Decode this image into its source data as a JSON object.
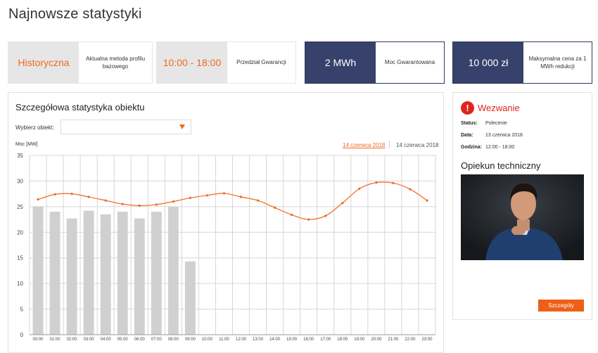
{
  "page_title": "Najnowsze statystyki",
  "cards": [
    {
      "value": "Historyczna",
      "label": "Aktualna metoda profilu bazowego"
    },
    {
      "value": "10:00 - 18:00",
      "label": "Przedział Gwarancji"
    },
    {
      "value": "2 MWh",
      "label": "Moc Gwarantowana"
    },
    {
      "value": "10 000 zł",
      "label": "Maksymalna cena za 1 MWh redukcji"
    }
  ],
  "stats": {
    "title": "Szczegółowa statystyka obiektu",
    "select_label": "Wybierz obiekt:",
    "select_value": "",
    "date_active": "14 czerwca 2018",
    "date_other": "14 czerwca 2018"
  },
  "alert": {
    "icon": "exclamation-icon",
    "title": "Wezwanie",
    "rows": [
      {
        "key": "Status:",
        "value": "Polecenie"
      },
      {
        "key": "Data:",
        "value": "13 czerwca 2018"
      },
      {
        "key": "Godzina:",
        "value": "12:00 - 18:00"
      }
    ],
    "contact_title": "Opiekun techniczny",
    "button_label": "Szczegóły"
  },
  "colors": {
    "accent": "#ee6a1f",
    "navy": "#36426b",
    "alert": "#e0241d",
    "bar": "#d0d0d0"
  },
  "chart_data": {
    "type": "bar",
    "ylabel": "Moc [MW]",
    "ylim": [
      0,
      35
    ],
    "yticks": [
      0,
      5,
      10,
      15,
      20,
      25,
      30,
      35
    ],
    "grid": true,
    "categories": [
      "00:00",
      "01:00",
      "02:00",
      "03:00",
      "04:00",
      "05:00",
      "06:00",
      "07:00",
      "08:00",
      "09:00",
      "10:00",
      "11:00",
      "12:00",
      "13:00",
      "14:00",
      "15:00",
      "16:00",
      "17:00",
      "18:00",
      "19:00",
      "20:00",
      "21:00",
      "22:00",
      "23:00"
    ],
    "series": [
      {
        "type": "bar",
        "values": [
          25,
          24,
          22.7,
          24.2,
          23.5,
          24,
          22.7,
          24,
          25,
          14.3,
          null,
          null,
          null,
          null,
          null,
          null,
          null,
          null,
          null,
          null,
          null,
          null,
          null,
          null
        ]
      },
      {
        "type": "line",
        "values": [
          26.4,
          27.4,
          27.5,
          26.9,
          26.2,
          25.5,
          25.2,
          25.4,
          26,
          26.7,
          27.2,
          27.6,
          26.9,
          26.2,
          24.8,
          23.4,
          22.5,
          23.2,
          25.7,
          28.5,
          29.7,
          29.6,
          28.4,
          26.2
        ]
      }
    ]
  }
}
